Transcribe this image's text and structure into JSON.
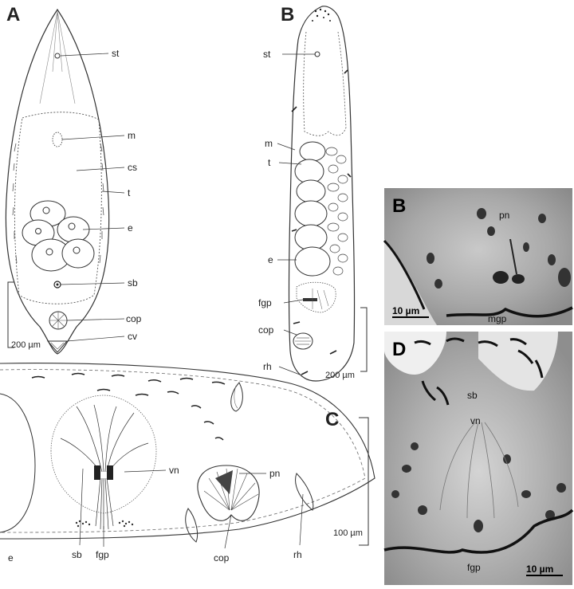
{
  "panels": {
    "A": {
      "letter": "A",
      "labels": {
        "st": "st",
        "m": "m",
        "cs": "cs",
        "t": "t",
        "e": "e",
        "sb": "sb",
        "cop": "cop",
        "cv": "cv"
      },
      "scale": "200 µm"
    },
    "B": {
      "letter": "B",
      "labels": {
        "st": "st",
        "m": "m",
        "t": "t",
        "e": "e",
        "fgp": "fgp",
        "cop": "cop",
        "rh": "rh"
      },
      "scale": "200 µm"
    },
    "C": {
      "letter": "C",
      "labels": {
        "e": "e",
        "sb": "sb",
        "fgp": "fgp",
        "vn": "vn",
        "pn": "pn",
        "cop": "cop",
        "rh": "rh"
      },
      "scale": "100 µm"
    },
    "photoB": {
      "letter": "B",
      "labels": {
        "pn": "pn",
        "mgp": "mgp"
      },
      "scale": "10 µm"
    },
    "photoD": {
      "letter": "D",
      "labels": {
        "sb": "sb",
        "vn": "vn",
        "fgp": "fgp"
      },
      "scale": "10 µm"
    }
  }
}
